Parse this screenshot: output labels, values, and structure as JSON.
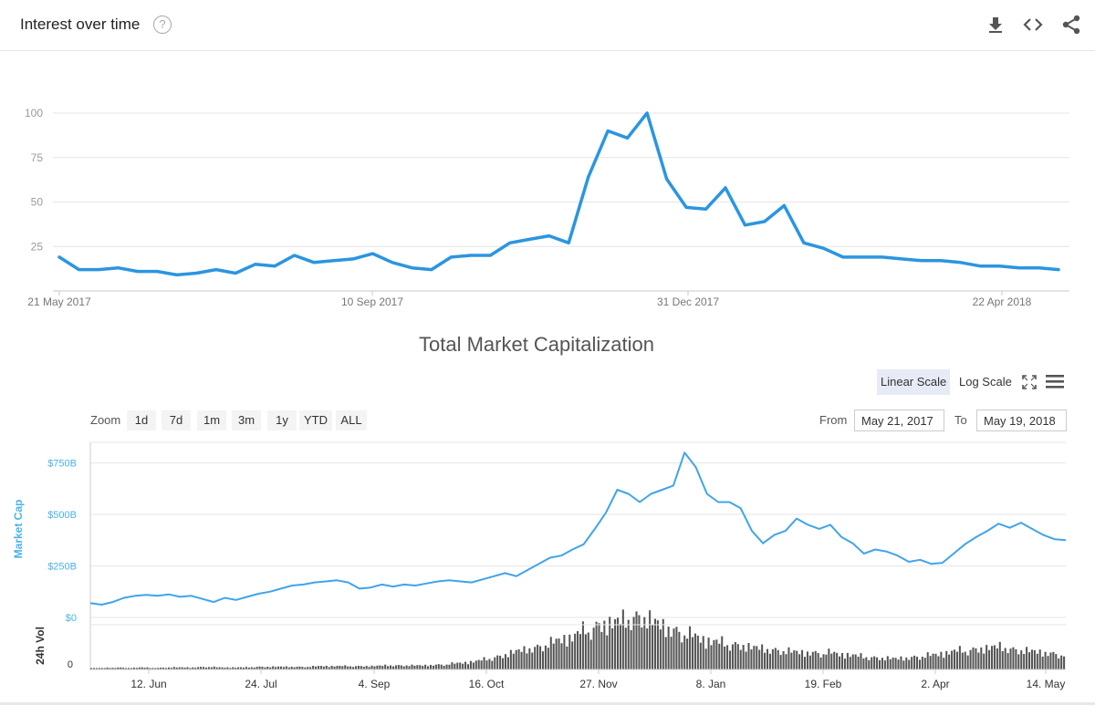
{
  "header": {
    "title": "Interest over time",
    "help_symbol": "?",
    "icons": [
      "download-icon",
      "embed-icon",
      "share-icon"
    ]
  },
  "colors": {
    "trends_line": "#2b95e0",
    "cap_line": "#41a4e8",
    "cap_axis_text": "#4bb2e6",
    "volume_bar": "#555555",
    "grid": "#e6e6e6"
  },
  "chart_data": [
    {
      "type": "line",
      "title": "Interest over time",
      "xlabel": "",
      "ylabel": "",
      "ylim": [
        0,
        100
      ],
      "yticks": [
        25,
        50,
        75,
        100
      ],
      "x_tick_labels": [
        "21 May 2017",
        "10 Sep 2017",
        "31 Dec 2017",
        "22 Apr 2018"
      ],
      "series": [
        {
          "name": "Interest",
          "values": [
            19,
            12,
            12,
            13,
            11,
            11,
            9,
            10,
            12,
            10,
            15,
            14,
            20,
            16,
            17,
            18,
            21,
            16,
            13,
            12,
            19,
            20,
            20,
            27,
            29,
            31,
            27,
            64,
            90,
            86,
            100,
            63,
            47,
            46,
            58,
            37,
            39,
            48,
            27,
            24,
            19,
            19,
            19,
            18,
            17,
            17,
            16,
            14,
            14,
            13,
            13,
            12
          ]
        }
      ]
    },
    {
      "type": "line",
      "title": "Total Market Capitalization",
      "ylabel": "Market Cap",
      "ylim": [
        0,
        850
      ],
      "ytick_labels": [
        "$0",
        "$250B",
        "$500B",
        "$750B"
      ],
      "x_tick_labels": [
        "12. Jun",
        "24. Jul",
        "4. Sep",
        "16. Oct",
        "27. Nov",
        "8. Jan",
        "19. Feb",
        "2. Apr",
        "14. May"
      ],
      "x_start": "May 21, 2017",
      "x_end": "May 19, 2018",
      "series": [
        {
          "name": "Market Cap",
          "points": [
            [
              0,
              70
            ],
            [
              7,
              62
            ],
            [
              14,
              75
            ],
            [
              21,
              95
            ],
            [
              28,
              105
            ],
            [
              35,
              110
            ],
            [
              42,
              105
            ],
            [
              49,
              112
            ],
            [
              56,
              100
            ],
            [
              63,
              105
            ],
            [
              70,
              90
            ],
            [
              77,
              75
            ],
            [
              84,
              95
            ],
            [
              91,
              85
            ],
            [
              98,
              100
            ],
            [
              105,
              115
            ],
            [
              112,
              125
            ],
            [
              119,
              140
            ],
            [
              126,
              155
            ],
            [
              133,
              160
            ],
            [
              140,
              170
            ],
            [
              147,
              175
            ],
            [
              154,
              180
            ],
            [
              161,
              170
            ],
            [
              168,
              140
            ],
            [
              175,
              145
            ],
            [
              182,
              160
            ],
            [
              189,
              150
            ],
            [
              196,
              160
            ],
            [
              203,
              155
            ],
            [
              210,
              165
            ],
            [
              217,
              175
            ],
            [
              224,
              180
            ],
            [
              231,
              175
            ],
            [
              238,
              170
            ],
            [
              245,
              185
            ],
            [
              252,
              200
            ],
            [
              259,
              215
            ],
            [
              266,
              200
            ],
            [
              273,
              230
            ],
            [
              280,
              260
            ],
            [
              287,
              290
            ],
            [
              294,
              300
            ],
            [
              301,
              330
            ],
            [
              308,
              355
            ],
            [
              315,
              430
            ],
            [
              322,
              510
            ],
            [
              329,
              620
            ],
            [
              336,
              600
            ],
            [
              343,
              560
            ],
            [
              350,
              600
            ],
            [
              357,
              620
            ],
            [
              364,
              640
            ],
            [
              371,
              800
            ],
            [
              378,
              730
            ],
            [
              385,
              600
            ],
            [
              392,
              560
            ],
            [
              399,
              560
            ],
            [
              406,
              530
            ],
            [
              413,
              420
            ],
            [
              420,
              360
            ],
            [
              427,
              400
            ],
            [
              434,
              420
            ],
            [
              441,
              480
            ],
            [
              448,
              450
            ],
            [
              455,
              430
            ],
            [
              462,
              450
            ],
            [
              469,
              390
            ],
            [
              476,
              360
            ],
            [
              483,
              310
            ],
            [
              490,
              330
            ],
            [
              497,
              320
            ],
            [
              504,
              300
            ],
            [
              511,
              270
            ],
            [
              518,
              280
            ],
            [
              525,
              260
            ],
            [
              532,
              265
            ],
            [
              539,
              310
            ],
            [
              546,
              355
            ],
            [
              553,
              390
            ],
            [
              560,
              420
            ],
            [
              567,
              455
            ],
            [
              574,
              435
            ],
            [
              581,
              460
            ],
            [
              588,
              430
            ],
            [
              595,
              400
            ],
            [
              602,
              380
            ],
            [
              609,
              375
            ]
          ]
        }
      ]
    },
    {
      "type": "bar",
      "title": "24h Vol",
      "ylabel": "24h Vol",
      "ytick_labels": [
        "0"
      ],
      "description": "Daily 24h trading volume; relative heights",
      "values": [
        2,
        2,
        3,
        2,
        3,
        2,
        3,
        3,
        3,
        4,
        3,
        3,
        3,
        4,
        4,
        4,
        4,
        4,
        5,
        5,
        5,
        5,
        5,
        6,
        6,
        6,
        6,
        7,
        8,
        10,
        12,
        16,
        20,
        26,
        30,
        34,
        40,
        46,
        52,
        62,
        68,
        70,
        76,
        80,
        70,
        62,
        56,
        50,
        44,
        40,
        38,
        35,
        32,
        30,
        28,
        26,
        25,
        25,
        24,
        22,
        20,
        18,
        17,
        16,
        18,
        20,
        22,
        26,
        28,
        30,
        32,
        34,
        30,
        28,
        26,
        24,
        22
      ]
    }
  ],
  "market_cap": {
    "title": "Total Market Capitalization",
    "scale_buttons": [
      "Linear Scale",
      "Log Scale"
    ],
    "active_scale": "Linear Scale",
    "zoom_label": "Zoom",
    "zoom_buttons": [
      "1d",
      "7d",
      "1m",
      "3m",
      "1y",
      "YTD",
      "ALL"
    ],
    "from_label": "From",
    "to_label": "To",
    "from_value": "May 21, 2017",
    "to_value": "May 19, 2018",
    "icons": [
      "fullscreen-icon",
      "menu-icon"
    ]
  }
}
